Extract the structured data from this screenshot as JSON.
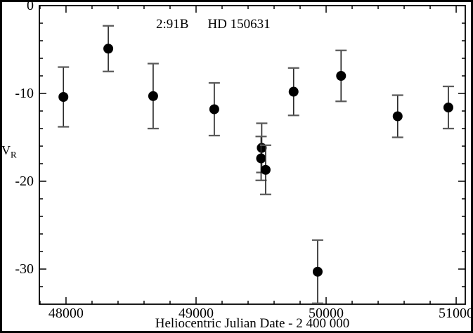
{
  "figure": {
    "background": "#ffffff",
    "border_color": "#000000",
    "title": {
      "left": "2:91B",
      "right": "HD 150631"
    },
    "ylabel": {
      "main": "V",
      "sub": "R"
    },
    "xlabel": "Heliocentric Julian Date - 2 400 000"
  },
  "chart_data": {
    "type": "scatter",
    "title": "2:91B  HD 150631",
    "xlabel": "Heliocentric Julian Date - 2 400 000",
    "ylabel": "V_R",
    "xlim": [
      47795,
      51070
    ],
    "ylim": [
      -34,
      0
    ],
    "grid": false,
    "legend": "none",
    "x_major_ticks": [
      48000,
      49000,
      50000,
      51000
    ],
    "x_tick_labels": [
      "48000",
      "49000",
      "50000",
      "51000"
    ],
    "x_minor_step": 200,
    "y_major_ticks": [
      0,
      -10,
      -20,
      -30
    ],
    "y_tick_labels": [
      "0",
      "-10",
      "-20",
      "-30"
    ],
    "y_minor_step": 2,
    "marker": "filled-circle",
    "marker_color": "#000000",
    "points": [
      {
        "x": 47980,
        "y": -10.4,
        "err": 3.4
      },
      {
        "x": 48325,
        "y": -4.9,
        "err": 2.6
      },
      {
        "x": 48670,
        "y": -10.3,
        "err": 3.7
      },
      {
        "x": 49140,
        "y": -11.8,
        "err": 3.0
      },
      {
        "x": 49505,
        "y": -16.2,
        "err": 2.8
      },
      {
        "x": 49500,
        "y": -17.4,
        "err": 2.5
      },
      {
        "x": 49535,
        "y": -18.7,
        "err": 2.8
      },
      {
        "x": 49750,
        "y": -9.8,
        "err": 2.7
      },
      {
        "x": 49935,
        "y": -30.3,
        "err": 3.6
      },
      {
        "x": 50115,
        "y": -8.0,
        "err": 2.9
      },
      {
        "x": 50550,
        "y": -12.6,
        "err": 2.4
      },
      {
        "x": 50940,
        "y": -11.6,
        "err": 2.4
      }
    ]
  }
}
